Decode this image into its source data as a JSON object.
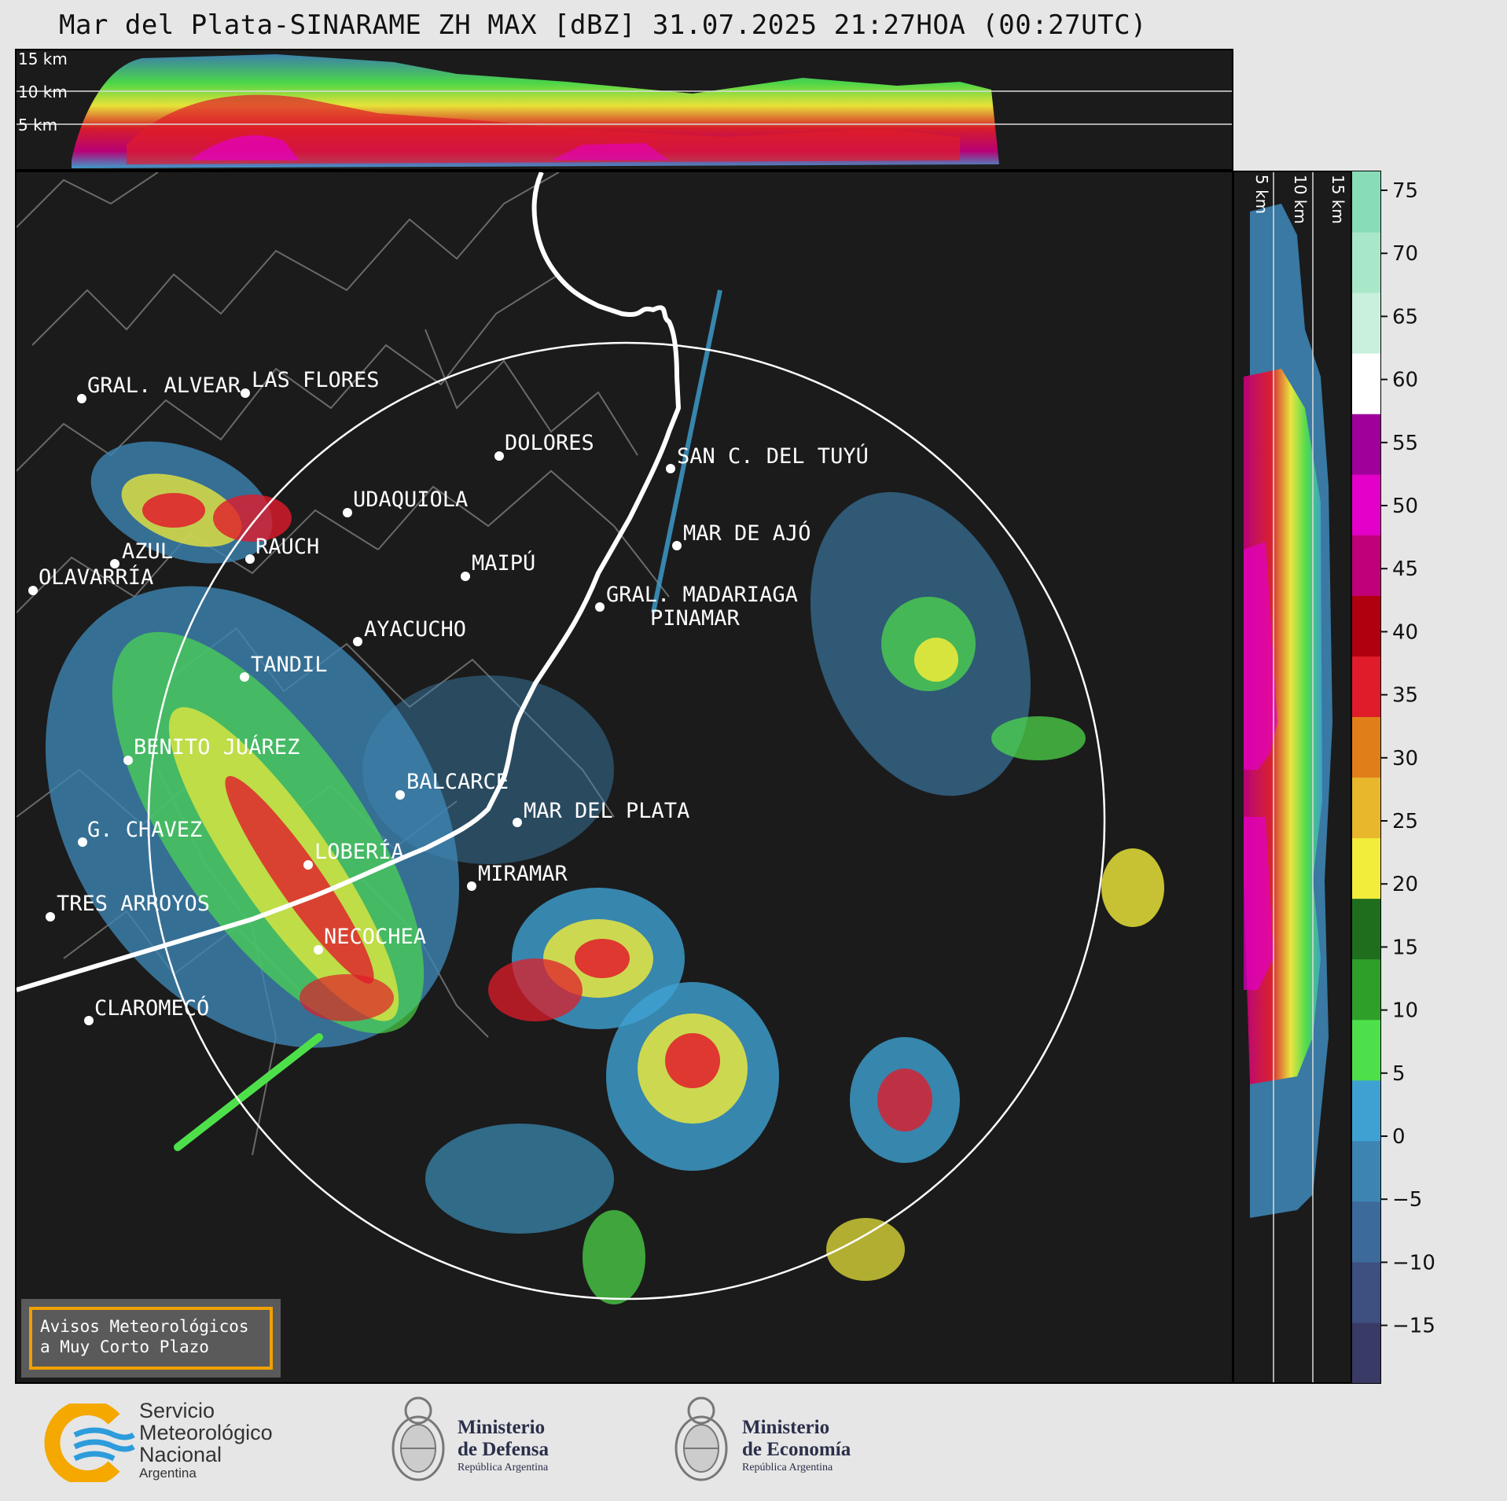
{
  "title": "Mar del Plata-SINARAME ZH MAX [dBZ] 31.07.2025 21:27HOA (00:27UTC)",
  "top_panel": {
    "altitude_labels": [
      "15 km",
      "10 km",
      "5 km"
    ]
  },
  "side_panel": {
    "altitude_labels": [
      "5 km",
      "10 km",
      "15 km"
    ]
  },
  "colorbar": {
    "unit": "dBZ",
    "ticks": [
      "75",
      "70",
      "65",
      "60",
      "55",
      "50",
      "45",
      "40",
      "35",
      "30",
      "25",
      "20",
      "15",
      "10",
      "5",
      "0",
      "−5",
      "−10",
      "−15"
    ],
    "range": [
      -20,
      77
    ],
    "colors": [
      "#3a3a66",
      "#3e5080",
      "#3c6a9a",
      "#3d84b3",
      "#3fa1d2",
      "#4ee04a",
      "#2ea02a",
      "#1f6e1e",
      "#f2ec3a",
      "#e8b72c",
      "#e07f18",
      "#e01c2a",
      "#b00010",
      "#c0007a",
      "#e400c8",
      "#a0009a",
      "#ffffff",
      "#c8f0dc",
      "#a8e8c8",
      "#88dcb8"
    ]
  },
  "cities": [
    {
      "name": "GRAL. ALVEAR"
    },
    {
      "name": "LAS FLORES"
    },
    {
      "name": "DOLORES"
    },
    {
      "name": "SAN C. DEL TUYÚ"
    },
    {
      "name": "UDAQUIOLA"
    },
    {
      "name": "MAR DE AJÓ"
    },
    {
      "name": "RAUCH"
    },
    {
      "name": "AZUL"
    },
    {
      "name": "MAIPÚ"
    },
    {
      "name": "OLAVARRÍA"
    },
    {
      "name": "GRAL. MADARIAGA"
    },
    {
      "name": "PINAMAR"
    },
    {
      "name": "AYACUCHO"
    },
    {
      "name": "TANDIL"
    },
    {
      "name": "BENITO JUÁREZ"
    },
    {
      "name": "BALCARCE"
    },
    {
      "name": "MAR DEL PLATA"
    },
    {
      "name": "G. CHAVEZ"
    },
    {
      "name": "LOBERÍA"
    },
    {
      "name": "MIRAMAR"
    },
    {
      "name": "TRES ARROYOS"
    },
    {
      "name": "NECOCHEA"
    },
    {
      "name": "CLAROMECÓ"
    }
  ],
  "warning": {
    "line1": "Avisos Meteorológicos",
    "line2": "a Muy Corto Plazo"
  },
  "logos": {
    "smn": {
      "line1": "Servicio",
      "line2": "Meteorológico",
      "line3": "Nacional",
      "line4": "Argentina"
    },
    "defensa": {
      "line1": "Ministerio",
      "line2": "de Defensa",
      "line3": "República Argentina"
    },
    "economia": {
      "line1": "Ministerio",
      "line2": "de Economía",
      "line3": "República Argentina"
    }
  }
}
